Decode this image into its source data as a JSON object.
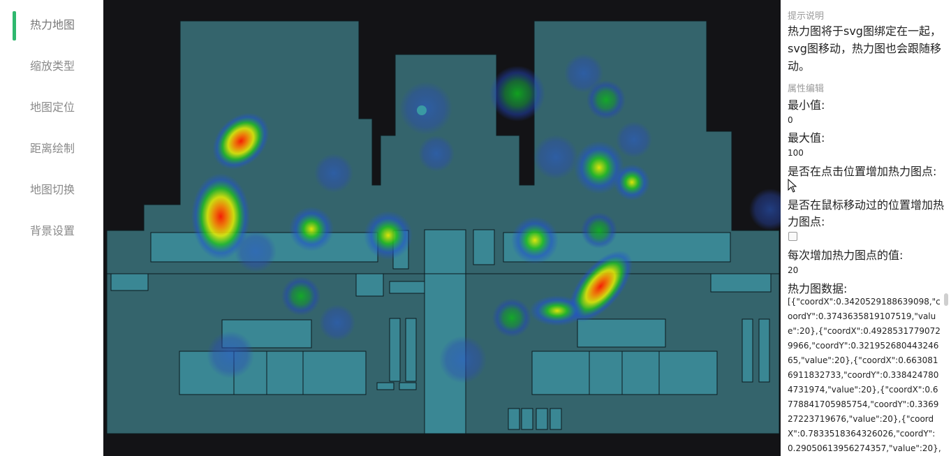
{
  "sidebar": {
    "items": [
      {
        "label": "热力地图"
      },
      {
        "label": "缩放类型"
      },
      {
        "label": "地图定位"
      },
      {
        "label": "距离绘制"
      },
      {
        "label": "地图切换"
      },
      {
        "label": "背景设置"
      }
    ]
  },
  "panel": {
    "tips_title": "提示说明",
    "tips_text": "热力图将于svg图绑定在一起，svg图移动，热力图也会跟随移动。",
    "props_title": "属性编辑",
    "min_label": "最小值:",
    "min_value": "0",
    "max_label": "最大值:",
    "max_value": "100",
    "click_add_label": "是否在点击位置增加热力图点:",
    "click_add_checked": false,
    "move_add_label_1": "是否在鼠标移动过的位置增加热",
    "move_add_label_2": "力图点:",
    "move_add_checked": false,
    "increment_label": "每次增加热力图点的值:",
    "increment_value": "20",
    "data_label": "热力图数据:",
    "data_text": "[{\"coordX\":0.3420529188639098,\"coordY\":0.3743635819107519,\"value\":20},{\"coordX\":0.49285317790729966,\"coordY\":0.32195268044324665,\"value\":20},{\"coordX\":0.6630816911832733,\"coordY\":0.3384247804731974,\"value\":20},{\"coordX\":0.6778841705985754,\"coordY\":0.336927223719676,\"value\":20},{\"coordX\":0.7833518364326026,\"coordY\":0.29050613956274357,\"value\":20},"
  },
  "map": {
    "colors": {
      "background": "#131316",
      "floor": "#34646c",
      "room": "#3a8794",
      "line": "#0c1a1e"
    }
  }
}
